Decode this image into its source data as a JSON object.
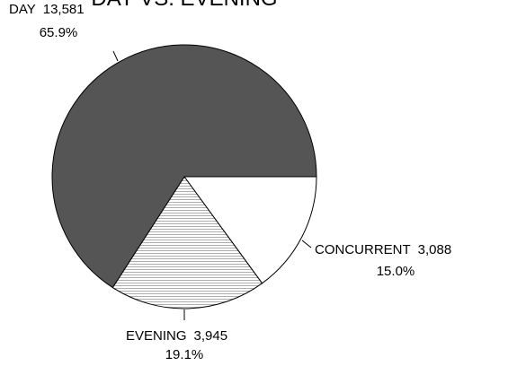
{
  "chart_data": {
    "type": "pie",
    "title": "DAY VS. EVENING",
    "categories": [
      "CONCURRENT",
      "EVENING",
      "DAY"
    ],
    "values": [
      3088,
      3945,
      13581
    ],
    "value_labels": [
      "3,088",
      "3,945",
      "13,581"
    ],
    "percents": [
      15.0,
      19.1,
      65.9
    ],
    "percent_labels": [
      "15.0%",
      "19.1%",
      "65.9%"
    ],
    "colors": [
      "#ffffff",
      "#ffffff",
      "#555555"
    ],
    "hatch": [
      false,
      true,
      false
    ]
  }
}
